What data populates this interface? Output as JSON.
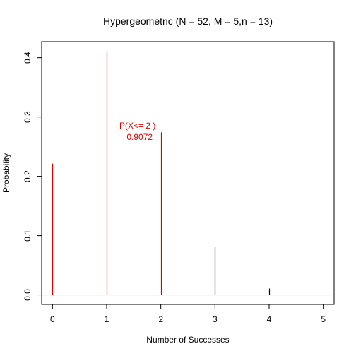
{
  "chart_data": {
    "type": "bar",
    "title": "Hypergeometric (N = 52, M = 5,n = 13)",
    "xlabel": "Number of Successes",
    "ylabel": "Probability",
    "x": [
      0,
      1,
      2,
      3,
      4,
      5
    ],
    "values": [
      0.2215,
      0.4114,
      0.2743,
      0.0815,
      0.0107,
      0.0005
    ],
    "highlight_upto": 2,
    "xlim": [
      -0.2,
      5.2
    ],
    "ylim": [
      -0.016,
      0.427
    ],
    "xticks": [
      "0",
      "1",
      "2",
      "3",
      "4",
      "5"
    ],
    "yticks": [
      "0.0",
      "0.1",
      "0.2",
      "0.3",
      "0.4"
    ],
    "grid": false,
    "baseline": 0,
    "annotation_line1": "P(X<= 2 )",
    "annotation_line2": "=  0.9072",
    "highlight_color": "#e00000",
    "default_color": "#000000",
    "baseline_color": "#bebebe"
  }
}
